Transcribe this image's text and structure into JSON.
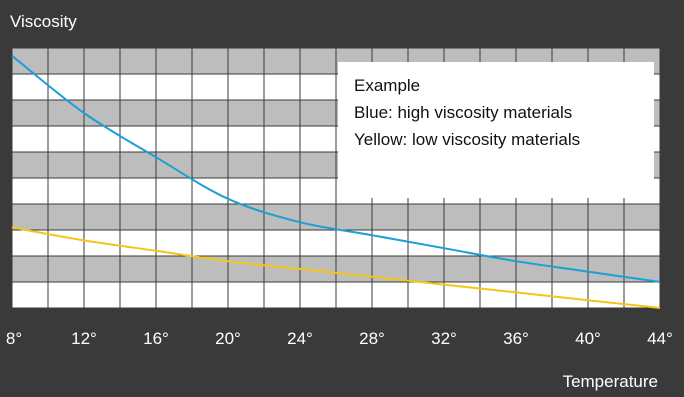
{
  "chart_data": {
    "type": "line",
    "xlabel": "Temperature",
    "ylabel": "Viscosity",
    "x_tick_labels": [
      "8°",
      "12°",
      "16°",
      "20°",
      "24°",
      "28°",
      "32°",
      "36°",
      "40°",
      "44°"
    ],
    "xlim": [
      8,
      44
    ],
    "ylim": [
      0,
      1
    ],
    "series": [
      {
        "color": "#1a9fd6",
        "x": [
          8,
          12,
          16,
          20,
          24,
          28,
          32,
          36,
          40,
          44
        ],
        "y": [
          0.97,
          0.75,
          0.58,
          0.42,
          0.33,
          0.28,
          0.23,
          0.18,
          0.14,
          0.1
        ]
      },
      {
        "color": "#f5c518",
        "x": [
          8,
          12,
          16,
          20,
          24,
          28,
          32,
          36,
          40,
          44
        ],
        "y": [
          0.31,
          0.26,
          0.22,
          0.18,
          0.15,
          0.12,
          0.09,
          0.06,
          0.03,
          0.0
        ]
      }
    ],
    "grid": true,
    "annotation_box": {
      "title": "Example",
      "lines": [
        "Blue: high viscosity materials",
        "Yellow: low viscosity materials"
      ]
    }
  }
}
